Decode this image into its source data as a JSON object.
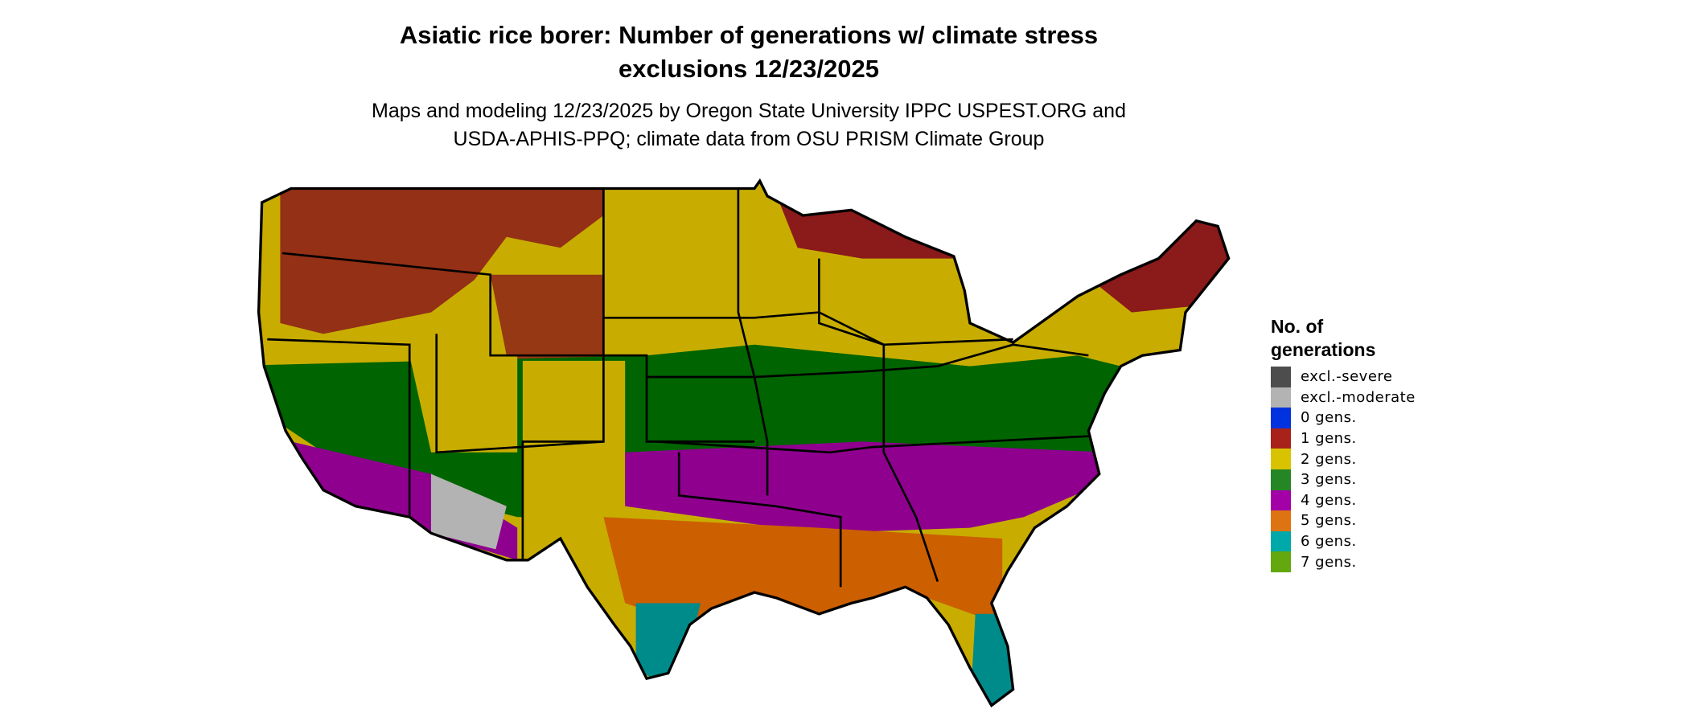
{
  "title_line1": "Asiatic rice borer: Number of generations w/ climate stress",
  "title_line2": "exclusions 12/23/2025",
  "subtitle_line1": "Maps and modeling 12/23/2025 by Oregon State University IPPC USPEST.ORG and",
  "subtitle_line2": "USDA-APHIS-PPQ; climate data from OSU PRISM Climate Group",
  "legend": {
    "title": "No. of generations",
    "items": [
      {
        "label": "excl.-severe",
        "color": "#4d4d4d"
      },
      {
        "label": "excl.-moderate",
        "color": "#b3b3b3"
      },
      {
        "label": "0 gens.",
        "color": "#0033dd"
      },
      {
        "label": "1 gens.",
        "color": "#a8221a"
      },
      {
        "label": "2 gens.",
        "color": "#d9c300"
      },
      {
        "label": "3 gens.",
        "color": "#248624"
      },
      {
        "label": "4 gens.",
        "color": "#a300a8"
      },
      {
        "label": "5 gens.",
        "color": "#dd7411"
      },
      {
        "label": "6 gens.",
        "color": "#00a9a9"
      },
      {
        "label": "7 gens.",
        "color": "#63a80e"
      }
    ]
  }
}
